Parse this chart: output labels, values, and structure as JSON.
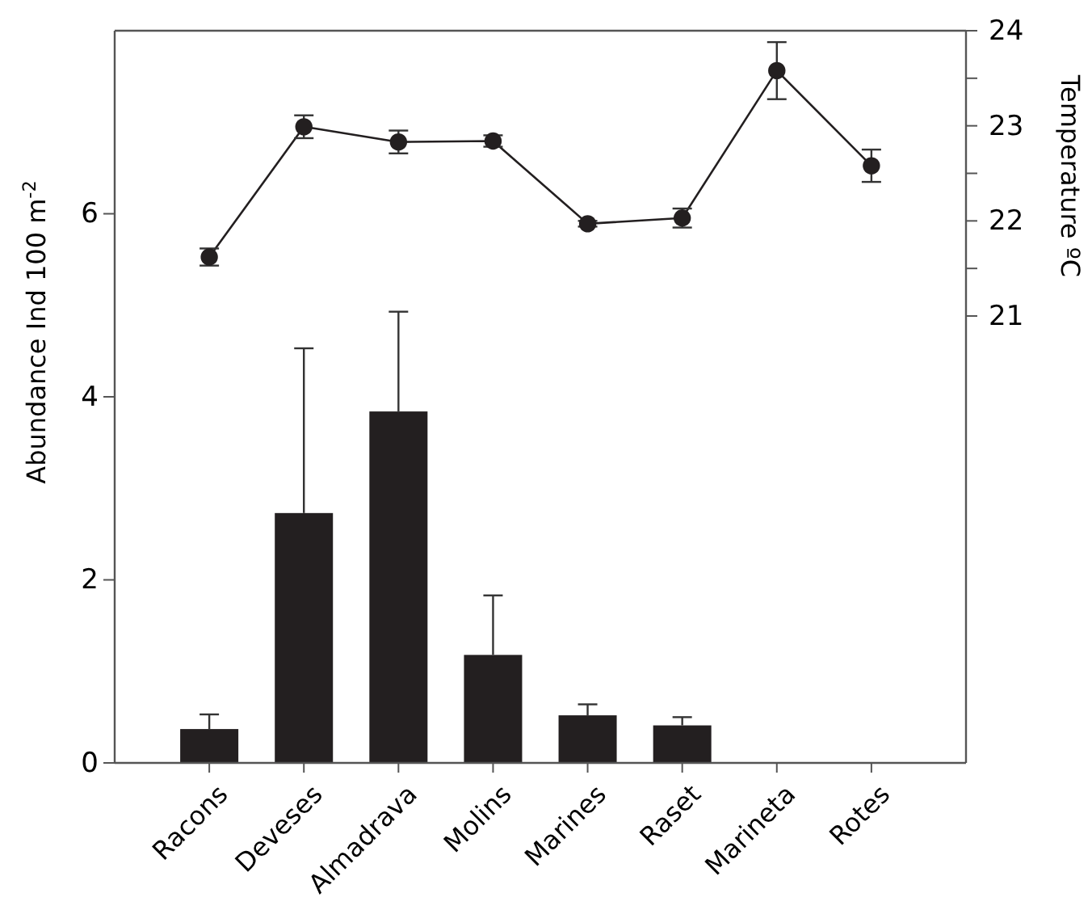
{
  "chart_data": {
    "type": "bar",
    "ylabel": "Abundance  Ind 100 m$^{-2}$",
    "y2label": "Temperature  ºC",
    "categories": [
      "Racons",
      "Deveses",
      "Almadrava",
      "Molins",
      "Marines",
      "Raset",
      "Marineta",
      "Rotes"
    ],
    "series": [
      {
        "color": "#231f20",
        "values": [
          0.37,
          2.73,
          3.84,
          1.18,
          0.52,
          0.41,
          0,
          0
        ],
        "errors": [
          [
            0.37,
            0.53
          ],
          [
            2.73,
            4.53
          ],
          [
            3.84,
            4.93
          ],
          [
            1.18,
            1.83
          ],
          [
            0.52,
            0.64
          ],
          [
            0.41,
            0.5
          ],
          null,
          null
        ]
      },
      {
        "type": "line",
        "axis": "y2",
        "color": "#231f20",
        "values": [
          21.62,
          22.99,
          22.83,
          22.84,
          21.97,
          22.03,
          23.58,
          22.58
        ],
        "errors": [
          0.09,
          0.12,
          0.12,
          0.06,
          0.03,
          0.1,
          0.3,
          0.17
        ]
      }
    ],
    "ylim": [
      0,
      8
    ],
    "yticks": [
      0,
      2,
      4,
      6
    ],
    "y2lim": [
      16.3,
      24
    ],
    "y2ticks": [
      {
        "value": 21,
        "label": "21"
      },
      {
        "value": 21.5,
        "label": null
      },
      {
        "value": 22,
        "label": "22"
      },
      {
        "value": 22.5,
        "label": null
      },
      {
        "value": 23,
        "label": "23"
      },
      {
        "value": 23.5,
        "label": null
      },
      {
        "value": 24,
        "label": "24"
      }
    ],
    "marker": "circle",
    "grid": false
  }
}
